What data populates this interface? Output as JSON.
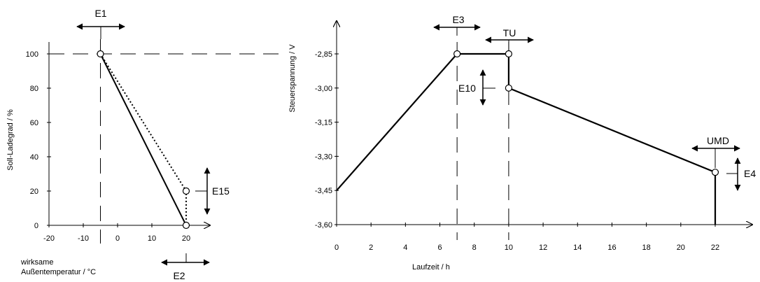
{
  "chart_data": [
    {
      "type": "line",
      "ylabel": "Soll-Ladegrad / %",
      "xlabel_line1": "wirksame",
      "xlabel_line2": "Außentemperatur / °C",
      "xticks": [
        -20,
        -10,
        0,
        10,
        20
      ],
      "x_tick_labels": [
        "-20",
        "-10",
        "0",
        "10",
        "20"
      ],
      "yticks": [
        0,
        20,
        40,
        60,
        80,
        100
      ],
      "y_tick_labels": [
        "0",
        "20",
        "40",
        "60",
        "80",
        "100"
      ],
      "xlim": [
        -20,
        25
      ],
      "ylim": [
        0,
        110
      ],
      "series": [
        {
          "style": "solid",
          "x": [
            -5,
            20
          ],
          "y": [
            100,
            0
          ]
        },
        {
          "style": "dotted",
          "x": [
            -5,
            20,
            20
          ],
          "y": [
            100,
            20,
            0
          ]
        }
      ],
      "markers": [
        {
          "x": -5,
          "y": 100
        },
        {
          "x": 20,
          "y": 20
        },
        {
          "x": 20,
          "y": 0
        }
      ],
      "reference_lines": {
        "y100_dashed": 100,
        "x_dashed": -5
      },
      "annotations": {
        "e1": "E1",
        "e2": "E2",
        "e15": "E15"
      }
    },
    {
      "type": "line",
      "ylabel": "Steuerspannung / V",
      "xlabel": "Laufzeit / h",
      "xticks": [
        0,
        2,
        4,
        6,
        8,
        10,
        12,
        14,
        16,
        18,
        20,
        22
      ],
      "x_tick_labels": [
        "0",
        "2",
        "4",
        "6",
        "8",
        "10",
        "12",
        "14",
        "16",
        "18",
        "20",
        "22"
      ],
      "yticks": [
        -3.6,
        -3.45,
        -3.3,
        -3.15,
        -3.0,
        -2.85
      ],
      "y_tick_labels": [
        "-3,60",
        "-3,45",
        "-3,30",
        "-3,15",
        "-3,00",
        "-2,85"
      ],
      "xlim": [
        0,
        24.5
      ],
      "ylim": [
        -3.6,
        -2.77
      ],
      "series": [
        {
          "style": "solid",
          "x": [
            0,
            7,
            10,
            10,
            22,
            22
          ],
          "y": [
            -3.45,
            -2.85,
            -2.85,
            -3.0,
            -3.37,
            -3.6
          ]
        }
      ],
      "markers": [
        {
          "x": 7,
          "y": -2.85
        },
        {
          "x": 10,
          "y": -2.85
        },
        {
          "x": 10,
          "y": -3.0
        },
        {
          "x": 22,
          "y": -3.37
        }
      ],
      "reference_lines": {
        "x_dashed": [
          7,
          10
        ]
      },
      "annotations": {
        "e3": "E3",
        "tu": "TU",
        "e10": "E10",
        "umd": "UMD",
        "e4": "E4"
      }
    }
  ]
}
